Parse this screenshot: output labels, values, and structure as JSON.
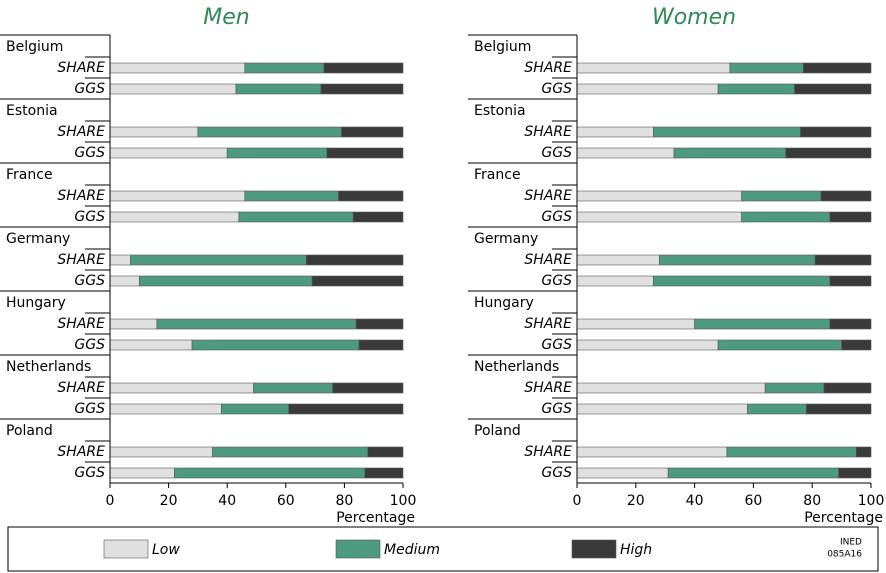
{
  "chart_data": [
    {
      "type": "stacked-bar-horizontal",
      "title": "Men",
      "groups": [
        "Belgium",
        "Estonia",
        "France",
        "Germany",
        "Hungary",
        "Netherlands",
        "Poland"
      ],
      "subgroups": [
        "SHARE",
        "GGS"
      ],
      "series": [
        {
          "name": "Low",
          "color": "#e0e0e0",
          "values": [
            46,
            43,
            30,
            40,
            46,
            44,
            7,
            10,
            16,
            28,
            49,
            38,
            35,
            22
          ]
        },
        {
          "name": "Medium",
          "color": "#4e9a80",
          "values": [
            27,
            29,
            49,
            34,
            32,
            39,
            60,
            59,
            68,
            57,
            27,
            23,
            53,
            65
          ]
        },
        {
          "name": "High",
          "color": "#3a3a3a",
          "values": [
            27,
            28,
            21,
            26,
            22,
            17,
            33,
            31,
            16,
            15,
            24,
            39,
            12,
            13
          ]
        }
      ],
      "xlabel": "Percentage",
      "xlim": [
        0,
        100
      ],
      "xticks": [
        0,
        20,
        40,
        60,
        80,
        100
      ]
    },
    {
      "type": "stacked-bar-horizontal",
      "title": "Women",
      "groups": [
        "Belgium",
        "Estonia",
        "France",
        "Germany",
        "Hungary",
        "Netherlands",
        "Poland"
      ],
      "subgroups": [
        "SHARE",
        "GGS"
      ],
      "series": [
        {
          "name": "Low",
          "color": "#e0e0e0",
          "values": [
            52,
            48,
            26,
            33,
            56,
            56,
            28,
            26,
            40,
            48,
            64,
            58,
            51,
            31
          ]
        },
        {
          "name": "Medium",
          "color": "#4e9a80",
          "values": [
            25,
            26,
            50,
            38,
            27,
            30,
            53,
            60,
            46,
            42,
            20,
            20,
            44,
            58
          ]
        },
        {
          "name": "High",
          "color": "#3a3a3a",
          "values": [
            23,
            26,
            24,
            29,
            17,
            14,
            19,
            14,
            14,
            10,
            16,
            22,
            5,
            11
          ]
        }
      ],
      "xlabel": "Percentage",
      "xlim": [
        0,
        100
      ],
      "xticks": [
        0,
        20,
        40,
        60,
        80,
        100
      ]
    }
  ],
  "credit": [
    "INED",
    "085A16"
  ]
}
